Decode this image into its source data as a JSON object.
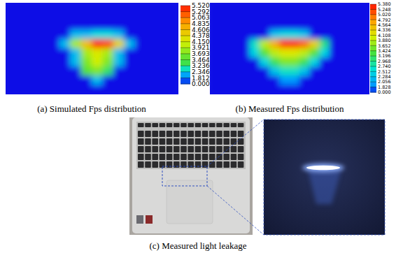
{
  "chart_data": [
    {
      "type": "heatmap",
      "title": "(a) Simulated Fps distribution",
      "cells": [
        [
          0,
          0,
          0,
          0,
          0,
          0,
          0,
          0,
          0,
          0,
          0,
          0,
          0,
          0,
          0,
          0
        ],
        [
          0,
          0,
          0,
          0,
          0,
          0,
          0,
          0,
          0,
          0,
          0,
          0,
          0,
          0,
          0,
          0
        ],
        [
          0,
          0,
          0,
          0,
          0,
          0,
          0,
          0,
          0,
          0,
          0,
          0,
          0,
          0,
          0,
          0
        ],
        [
          0,
          0,
          0,
          0,
          0,
          0,
          2.3,
          2.3,
          2.6,
          2.6,
          2.3,
          0,
          0,
          0,
          0,
          0
        ],
        [
          0,
          0,
          0,
          0,
          0,
          2.3,
          3.9,
          4.6,
          5.5,
          5.3,
          4.4,
          2.3,
          0,
          0,
          0,
          0
        ],
        [
          0,
          0,
          0,
          0,
          0,
          0,
          2.3,
          3.9,
          4.2,
          3.9,
          2.3,
          0,
          0,
          0,
          0,
          0
        ],
        [
          0,
          0,
          0,
          0,
          0,
          0,
          2.3,
          3.7,
          4.1,
          3.7,
          2.3,
          0,
          0,
          0,
          0,
          0
        ],
        [
          0,
          0,
          0,
          0,
          0,
          0,
          0,
          3.5,
          3.7,
          3.2,
          0,
          0,
          0,
          0,
          0,
          0
        ],
        [
          0,
          0,
          0,
          0,
          0,
          0,
          0,
          0,
          2.3,
          0,
          0,
          0,
          0,
          0,
          0,
          0
        ],
        [
          0,
          0,
          0,
          0,
          0,
          0,
          0,
          0,
          0,
          0,
          0,
          0,
          0,
          0,
          0,
          0
        ]
      ],
      "colorbar": {
        "range": [
          0,
          5.52
        ],
        "levels": [
          {
            "value": 5.52,
            "label": "5.520"
          },
          {
            "value": 5.292,
            "label": "5.292"
          },
          {
            "value": 5.063,
            "label": "5.063"
          },
          {
            "value": 4.835,
            "label": "4.835"
          },
          {
            "value": 4.606,
            "label": "4.606"
          },
          {
            "value": 4.378,
            "label": "4.378"
          },
          {
            "value": 4.15,
            "label": "4.150"
          },
          {
            "value": 3.921,
            "label": "3.921"
          },
          {
            "value": 3.693,
            "label": "3.693"
          },
          {
            "value": 3.464,
            "label": "3.464"
          },
          {
            "value": 3.236,
            "label": "3.236"
          },
          {
            "value": 2.346,
            "label": "2.346"
          },
          {
            "value": 1.812,
            "label": "1.812"
          },
          {
            "value": 0,
            "label": "0.000"
          }
        ]
      }
    },
    {
      "type": "heatmap",
      "title": "(b) Measured Fps distribution",
      "cells": [
        [
          0,
          0,
          0,
          0,
          0,
          0,
          0,
          0,
          0,
          0,
          0,
          0,
          0,
          0,
          0,
          0
        ],
        [
          0,
          0,
          0,
          0,
          0,
          0,
          0,
          0,
          0,
          0,
          0,
          0,
          0,
          0,
          0,
          0
        ],
        [
          0,
          0,
          0,
          0,
          0,
          0,
          0,
          0,
          0,
          0,
          0,
          0,
          0,
          0,
          0,
          0
        ],
        [
          0,
          0,
          0,
          0,
          0,
          0,
          2.3,
          2.5,
          2.5,
          2.3,
          0,
          0,
          0,
          0,
          0,
          0
        ],
        [
          0,
          0,
          0,
          0,
          2.7,
          3.9,
          4.6,
          5.3,
          5.3,
          5.0,
          4.3,
          3.0,
          0,
          0,
          0,
          0
        ],
        [
          0,
          0,
          0,
          0,
          2.5,
          3.4,
          3.9,
          4.1,
          4.1,
          3.9,
          3.4,
          2.5,
          0,
          0,
          0,
          0
        ],
        [
          0,
          0,
          0,
          0,
          0,
          2.5,
          3.2,
          3.6,
          3.6,
          3.2,
          2.5,
          0,
          0,
          0,
          0,
          0
        ],
        [
          0,
          0,
          0,
          0,
          0,
          0,
          2.3,
          2.7,
          2.7,
          2.3,
          0,
          0,
          0,
          0,
          0,
          0
        ],
        [
          0,
          0,
          0,
          0,
          0,
          0,
          0,
          1.9,
          1.9,
          0,
          0,
          0,
          0,
          0,
          0,
          0
        ],
        [
          0,
          0,
          0,
          0,
          0,
          0,
          0,
          0,
          0,
          0,
          0,
          0,
          0,
          0,
          0,
          0
        ]
      ],
      "colorbar": {
        "range": [
          0,
          5.38
        ],
        "levels": [
          {
            "value": 5.38,
            "label": "5.380"
          },
          {
            "value": 5.248,
            "label": "5.248"
          },
          {
            "value": 5.02,
            "label": "5.020"
          },
          {
            "value": 4.792,
            "label": "4.792"
          },
          {
            "value": 4.564,
            "label": "4.564"
          },
          {
            "value": 4.336,
            "label": "4.336"
          },
          {
            "value": 4.108,
            "label": "4.108"
          },
          {
            "value": 3.88,
            "label": "3.880"
          },
          {
            "value": 3.652,
            "label": "3.652"
          },
          {
            "value": 3.424,
            "label": "3.424"
          },
          {
            "value": 3.196,
            "label": "3.196"
          },
          {
            "value": 2.968,
            "label": "2.968"
          },
          {
            "value": 2.74,
            "label": "2.740"
          },
          {
            "value": 2.512,
            "label": "2.512"
          },
          {
            "value": 2.284,
            "label": "2.284"
          },
          {
            "value": 2.056,
            "label": "2.056"
          },
          {
            "value": 1.828,
            "label": "1.828"
          },
          {
            "value": 0,
            "label": "0.000"
          }
        ]
      }
    }
  ],
  "photo": {
    "caption": "(c) Measured light leakage"
  }
}
